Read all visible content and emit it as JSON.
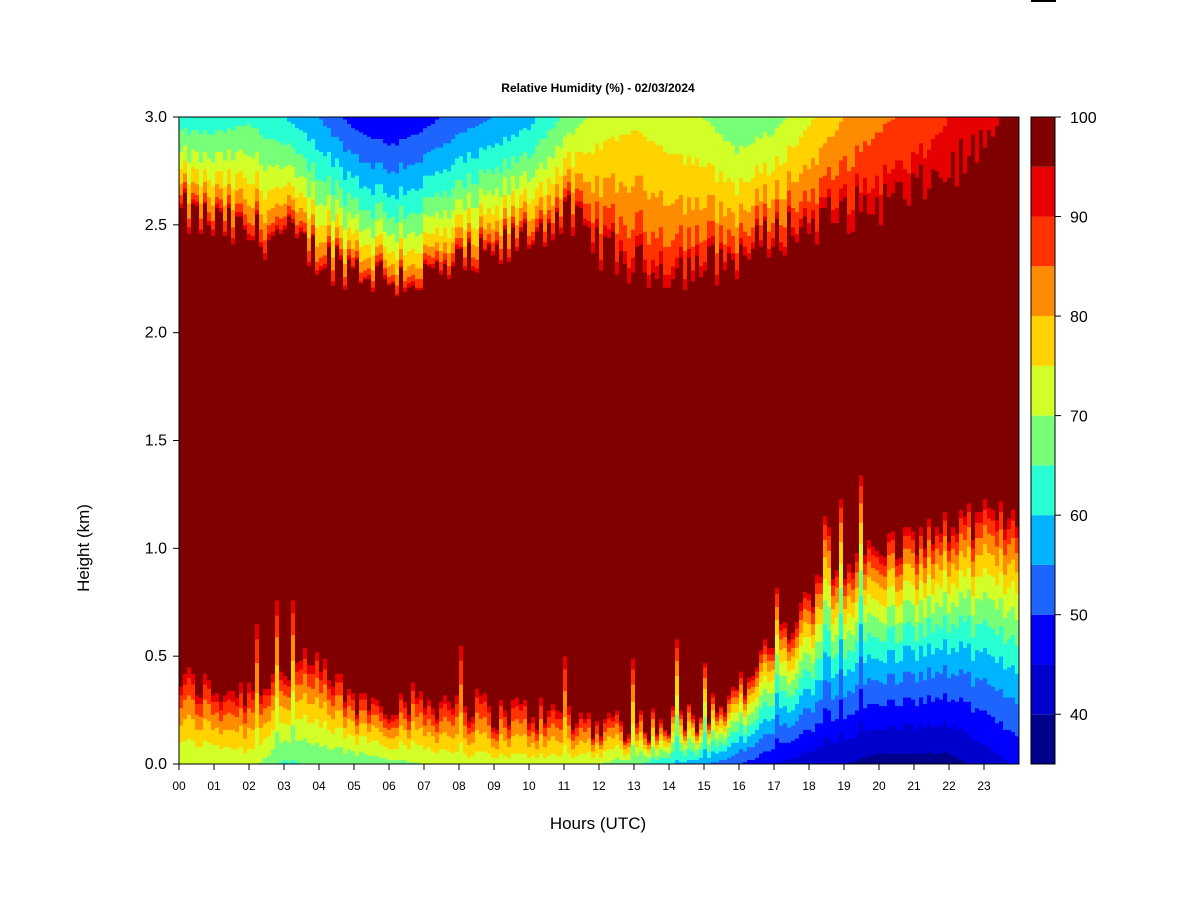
{
  "chart_data": {
    "type": "heatmap",
    "title": "Relative Humidity (%) - 02/03/2024",
    "xlabel": "Hours (UTC)",
    "ylabel": "Height (km)",
    "xlim": [
      0,
      24
    ],
    "ylim": [
      0,
      3.0
    ],
    "x_ticks": [
      "00",
      "01",
      "02",
      "03",
      "04",
      "05",
      "06",
      "07",
      "08",
      "09",
      "10",
      "11",
      "12",
      "13",
      "14",
      "15",
      "16",
      "17",
      "18",
      "19",
      "20",
      "21",
      "22",
      "23"
    ],
    "y_ticks": [
      "0.0",
      "0.5",
      "1.0",
      "1.5",
      "2.0",
      "2.5",
      "3.0"
    ],
    "colorbar": {
      "levels": [
        35,
        40,
        45,
        50,
        55,
        60,
        65,
        70,
        75,
        80,
        85,
        90,
        95,
        100
      ],
      "tick_labels": [
        "40",
        "50",
        "60",
        "70",
        "80",
        "90",
        "100"
      ],
      "colors": [
        "#00008b",
        "#0000cd",
        "#0000ff",
        "#1e64ff",
        "#00b4ff",
        "#28ffd2",
        "#78ff78",
        "#d2ff28",
        "#ffd200",
        "#ff8c00",
        "#ff3200",
        "#e60000",
        "#800000"
      ]
    },
    "profile": {
      "hours": [
        0,
        1,
        2,
        3,
        4,
        5,
        6,
        7,
        8,
        9,
        10,
        11,
        12,
        13,
        14,
        15,
        16,
        17,
        18,
        19,
        20,
        21,
        22,
        23,
        24
      ],
      "upper_dry_layer_base_km": [
        2.55,
        2.5,
        2.45,
        2.45,
        2.35,
        2.3,
        2.25,
        2.25,
        2.3,
        2.35,
        2.45,
        2.55,
        2.4,
        2.3,
        2.3,
        2.3,
        2.35,
        2.45,
        2.5,
        2.55,
        2.6,
        2.65,
        2.75,
        2.85,
        2.9
      ],
      "upper_min_rh_pct": [
        62,
        62,
        64,
        60,
        55,
        48,
        45,
        48,
        52,
        55,
        58,
        66,
        72,
        74,
        72,
        70,
        66,
        68,
        74,
        80,
        84,
        86,
        90,
        94,
        96
      ],
      "lower_moist_layer_top_km": [
        0.4,
        0.35,
        0.35,
        0.45,
        0.45,
        0.3,
        0.3,
        0.3,
        0.3,
        0.25,
        0.25,
        0.22,
        0.2,
        0.2,
        0.2,
        0.25,
        0.35,
        0.55,
        0.75,
        0.95,
        1.0,
        1.05,
        1.1,
        1.15,
        1.15
      ],
      "surface_min_rh_pct": [
        70,
        70,
        72,
        64,
        66,
        66,
        68,
        70,
        72,
        72,
        72,
        72,
        70,
        66,
        60,
        56,
        50,
        45,
        42,
        40,
        38,
        38,
        38,
        42,
        46
      ]
    }
  }
}
